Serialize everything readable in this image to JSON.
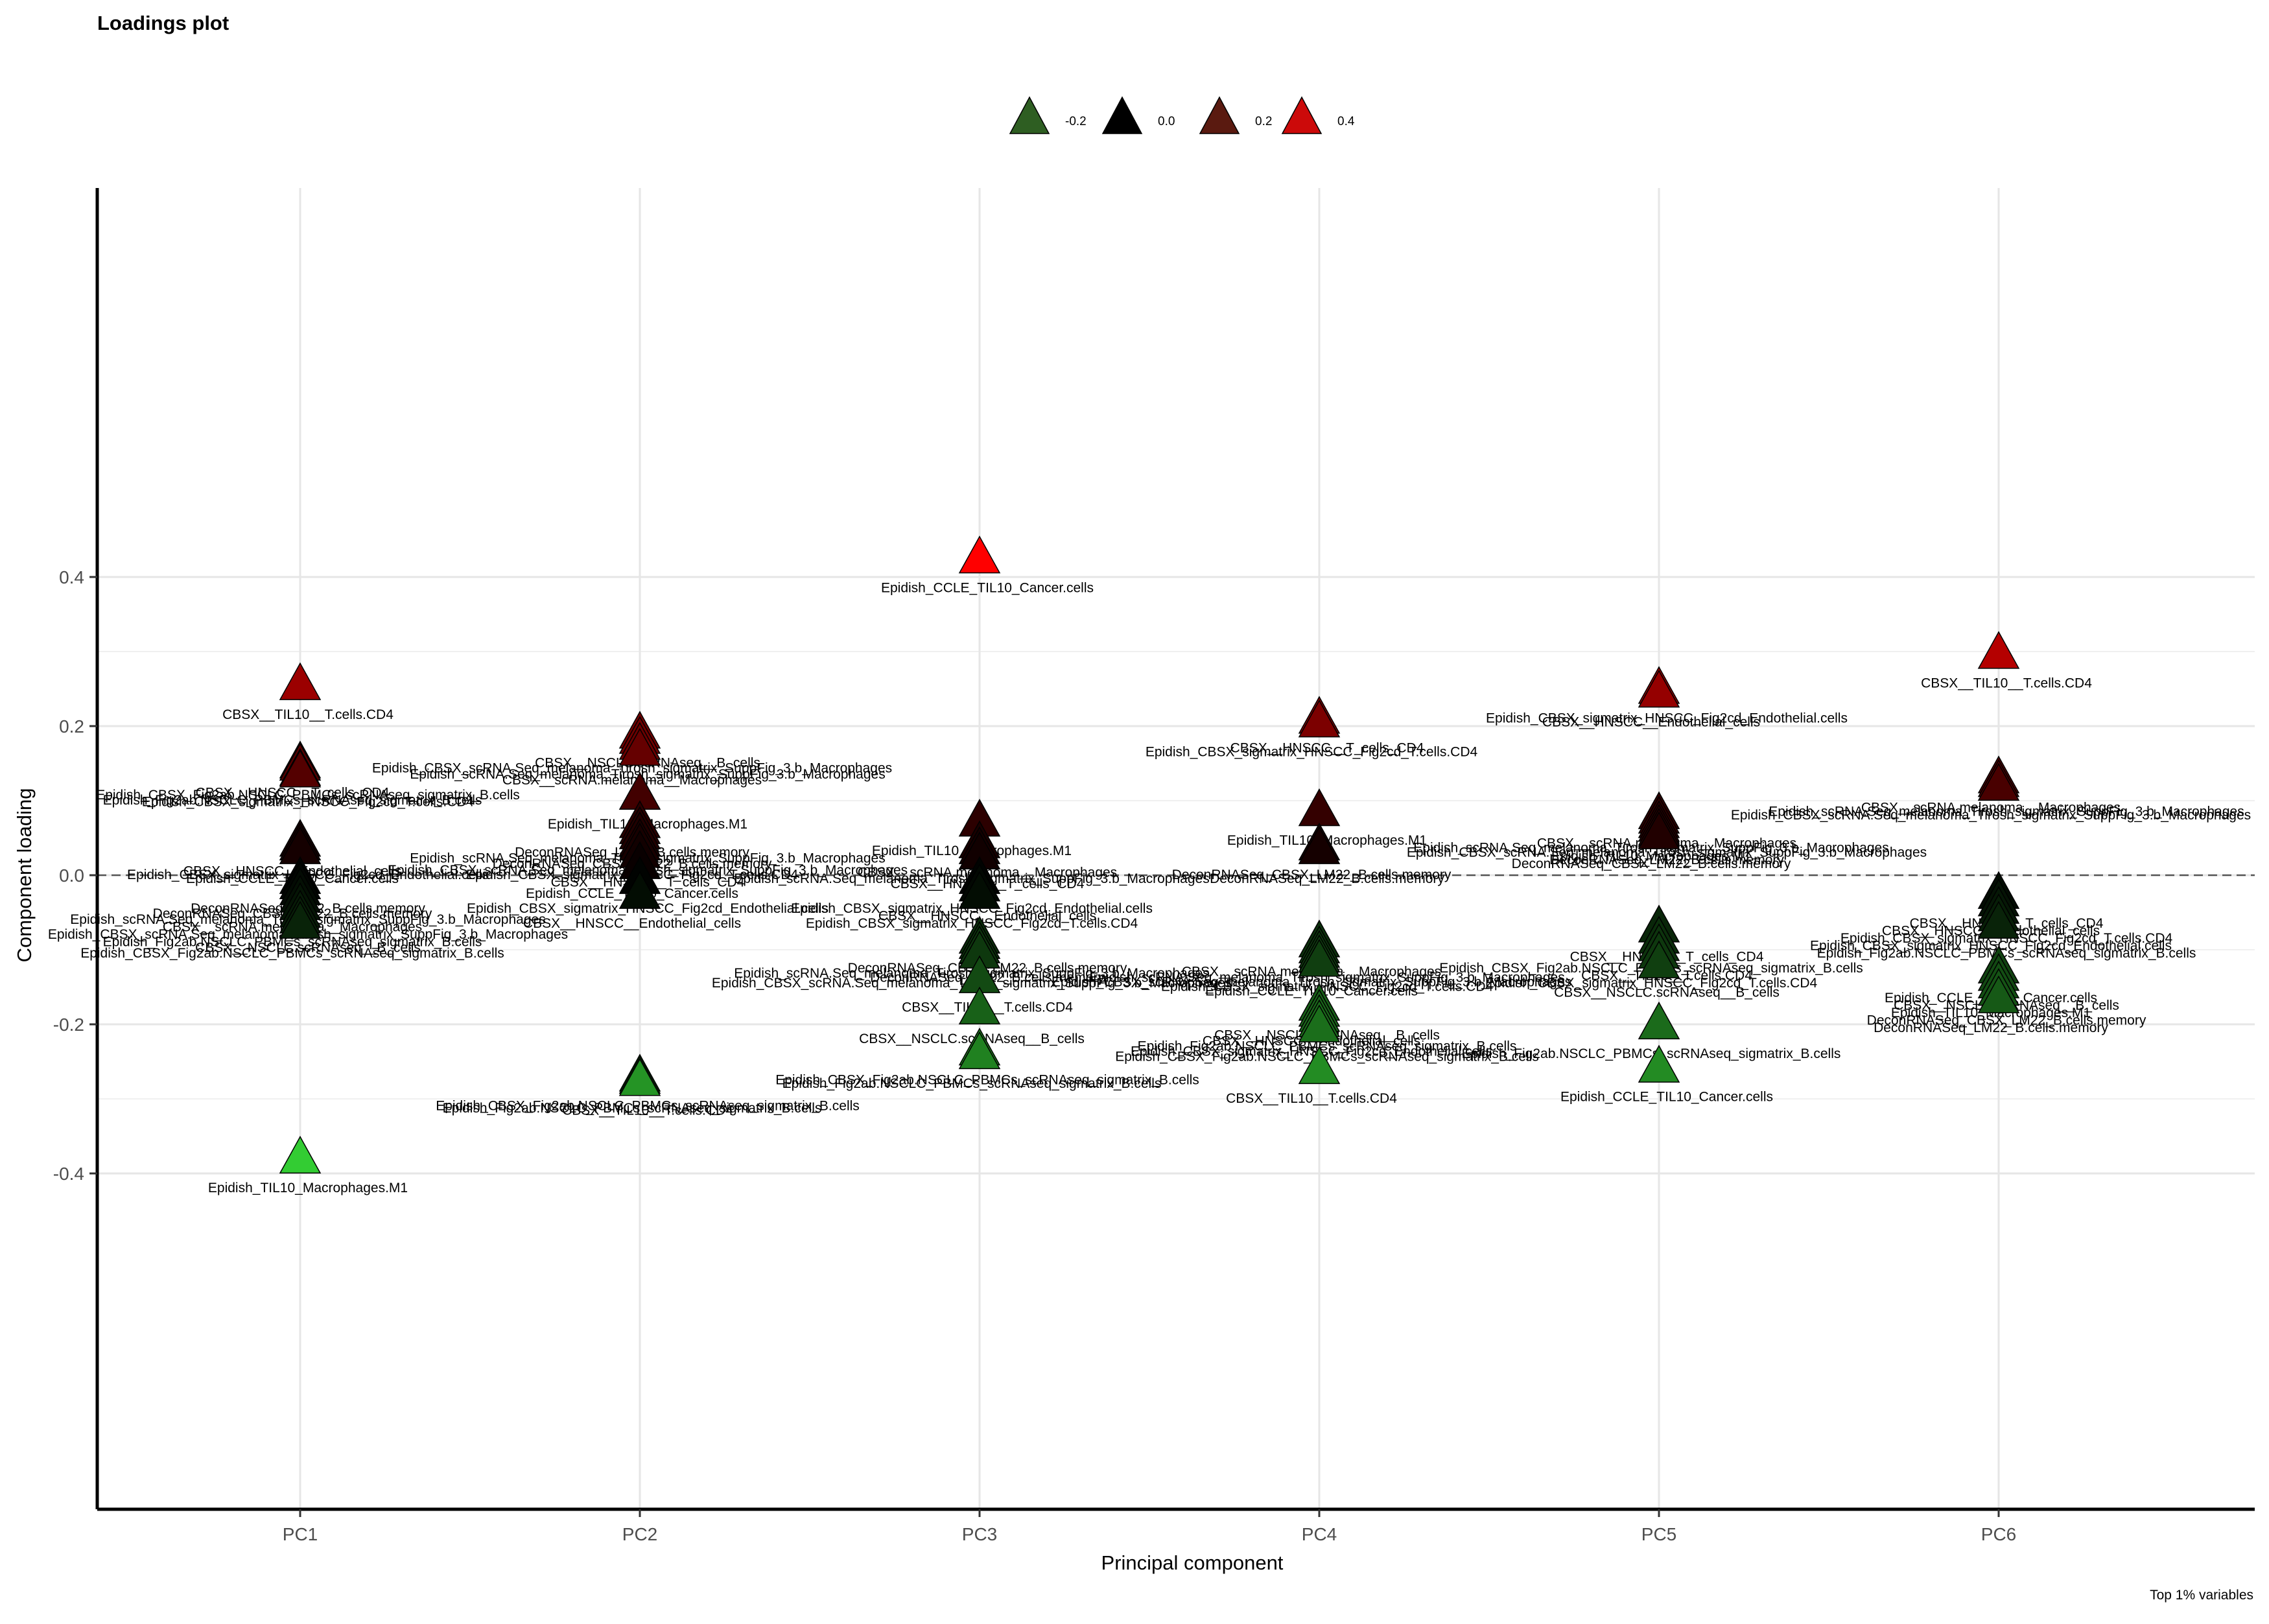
{
  "chart_data": {
    "type": "scatter",
    "title": "Loadings plot",
    "xlabel": "Principal component",
    "ylabel": "Component loading",
    "caption": "Top 1% variables",
    "categories": [
      "PC1",
      "PC2",
      "PC3",
      "PC4",
      "PC5",
      "PC6"
    ],
    "ylim": [
      -0.427,
      0.46
    ],
    "yticks": [
      -0.4,
      -0.2,
      0.0,
      0.2,
      0.4
    ],
    "ytick_labels": [
      "-0.4",
      "-0.2",
      "0.0",
      "0.2",
      "0.4"
    ],
    "hline": 0.0,
    "grid": true,
    "legend": {
      "position": "top",
      "entries": [
        {
          "label": "-0.2",
          "color": "#2e5e22"
        },
        {
          "label": "0.0",
          "color": "#000000"
        },
        {
          "label": "0.2",
          "color": "#5a1a10"
        },
        {
          "label": "0.4",
          "color": "#cc0a0a"
        }
      ]
    },
    "color_scale": {
      "low": "#33cc33",
      "mid": "#000000",
      "high": "#ff0000"
    },
    "points": [
      {
        "pc": "PC1",
        "y": 0.255,
        "label": "CBSX__TIL10__T.cells.CD4"
      },
      {
        "pc": "PC1",
        "y": 0.15,
        "label": "CBSX__HNSCC__T_cells_CD4"
      },
      {
        "pc": "PC1",
        "y": 0.147,
        "label": "Epidish_CBSX_Fig2ab.NSCLC_PBMCs_scRNAseq_sigmatrix_B.cells"
      },
      {
        "pc": "PC1",
        "y": 0.14,
        "label": "Epidish_Fig2ab.NSCLC_PBMCs_scRNAseq_sigmatrix_B.cells"
      },
      {
        "pc": "PC1",
        "y": 0.138,
        "label": "Epidish_CBSX_sigmatrix_HNSCC_Fig2cd_T.cells.CD4"
      },
      {
        "pc": "PC1",
        "y": 0.045,
        "label": "CBSX__HNSCC__Endothelial_cells"
      },
      {
        "pc": "PC1",
        "y": 0.04,
        "label": "Epidish_CBSX_sigmatrix_HNSCC_Fig2cd_Endothelial.cells"
      },
      {
        "pc": "PC1",
        "y": 0.035,
        "label": "Epidish_CCLE_TIL10_Cancer.cells"
      },
      {
        "pc": "PC1",
        "y": -0.005,
        "label": "DeconRNASeq_LM22_B.cells.memory"
      },
      {
        "pc": "PC1",
        "y": -0.012,
        "label": "DeconRNASeq_CBSX_LM22_B.cells.memory"
      },
      {
        "pc": "PC1",
        "y": -0.02,
        "label": "Epidish_scRNA.Seq_melanoma_Tirosh_sigmatrix_SuppFig_3.b_Macrophages"
      },
      {
        "pc": "PC1",
        "y": -0.03,
        "label": "CBSX__scRNA.melanoma__Macrophages"
      },
      {
        "pc": "PC1",
        "y": -0.04,
        "label": "Epidish_CBSX_scRNA.Seq_melanoma_Tirosh_sigmatrix_SuppFig_3.b_Macrophages"
      },
      {
        "pc": "PC1",
        "y": -0.05,
        "label": "Epidish_Fig2ab.NSCLC_PBMCs_scRNAseq_sigmatrix_B.cells"
      },
      {
        "pc": "PC1",
        "y": -0.058,
        "label": "CBSX__NSCLC.scRNAseq__B_cells"
      },
      {
        "pc": "PC1",
        "y": -0.065,
        "label": "Epidish_CBSX_Fig2ab.NSCLC_PBMCs_scRNAseq_sigmatrix_B.cells"
      },
      {
        "pc": "PC1",
        "y": -0.38,
        "label": "Epidish_TIL10_Macrophages.M1"
      },
      {
        "pc": "PC2",
        "y": 0.19,
        "label": "CBSX__NSCLC.scRNAseq__B_cells"
      },
      {
        "pc": "PC2",
        "y": 0.183,
        "label": "Epidish_CBSX_scRNA.Seq_melanoma_Tirosh_sigmatrix_SuppFig_3.b_Macrophages"
      },
      {
        "pc": "PC2",
        "y": 0.175,
        "label": "Epidish_scRNA.Seq_melanoma_Tirosh_sigmatrix_SuppFig_3.b_Macrophages"
      },
      {
        "pc": "PC2",
        "y": 0.167,
        "label": "CBSX__scRNA.melanoma__Macrophages"
      },
      {
        "pc": "PC2",
        "y": 0.108,
        "label": "Epidish_TIL10_Macrophages.M1"
      },
      {
        "pc": "PC2",
        "y": 0.07,
        "label": "DeconRNASeq_LM22_B.cells.memory"
      },
      {
        "pc": "PC2",
        "y": 0.062,
        "label": "Epidish_scRNA.Seq_melanoma_Tirosh_sigmatrix_SuppFig_3.b_Macrophages"
      },
      {
        "pc": "PC2",
        "y": 0.055,
        "label": "DeconRNASeq_CBSX_LM22_B.cells.memory"
      },
      {
        "pc": "PC2",
        "y": 0.046,
        "label": "Epidish_CBSX_scRNA.Seq_melanoma_Tirosh_sigmatrix_SuppFig_3.b_Macrophages"
      },
      {
        "pc": "PC2",
        "y": 0.04,
        "label": "Epidish_CBSX_sigmatrix_HNSCC_Fig2cd_T.cells.CD4"
      },
      {
        "pc": "PC2",
        "y": 0.03,
        "label": "CBSX__HNSCC__T_cells_CD4"
      },
      {
        "pc": "PC2",
        "y": 0.015,
        "label": "Epidish_CCLE_TIL10_Cancer.cells"
      },
      {
        "pc": "PC2",
        "y": -0.005,
        "label": "Epidish_CBSX_sigmatrix_HNSCC_Fig2cd_Endothelial.cells"
      },
      {
        "pc": "PC2",
        "y": -0.025,
        "label": "CBSX__HNSCC__Endothelial_cells"
      },
      {
        "pc": "PC2",
        "y": -0.27,
        "label": "Epidish_CBSX_Fig2ab.NSCLC_PBMCs_scRNAseq_sigmatrix_B.cells"
      },
      {
        "pc": "PC2",
        "y": -0.273,
        "label": "Epidish_Fig2ab.NSCLC_PBMCs_scRNAseq_sigmatrix_B.cells"
      },
      {
        "pc": "PC2",
        "y": -0.276,
        "label": "CBSX__TIL10__T.cells.CD4"
      },
      {
        "pc": "PC3",
        "y": 0.425,
        "label": "Epidish_CCLE_TIL10_Cancer.cells"
      },
      {
        "pc": "PC3",
        "y": 0.072,
        "label": "Epidish_TIL10_Macrophages.M1"
      },
      {
        "pc": "PC3",
        "y": 0.043,
        "label": "CBSX__scRNA.melanoma__Macrophages"
      },
      {
        "pc": "PC3",
        "y": 0.035,
        "label": "Epidish_scRNA.Seq_melanoma_Tirosh_sigmatrix_SuppFig_3.b_Macrophages"
      },
      {
        "pc": "PC3",
        "y": 0.028,
        "label": "CBSX__HNSCC__T_cells_CD4"
      },
      {
        "pc": "PC3",
        "y": -0.005,
        "label": "Epidish_CBSX_sigmatrix_HNSCC_Fig2cd_Endothelial.cells"
      },
      {
        "pc": "PC3",
        "y": -0.015,
        "label": "CBSX__HNSCC__Endothelial_cells"
      },
      {
        "pc": "PC3",
        "y": -0.025,
        "label": "Epidish_CBSX_sigmatrix_HNSCC_Fig2cd_T.cells.CD4"
      },
      {
        "pc": "PC3",
        "y": -0.085,
        "label": "DeconRNASeq_CBSX_LM22_B.cells.memory"
      },
      {
        "pc": "PC3",
        "y": -0.092,
        "label": "Epidish_scRNA.Seq_melanoma_Tirosh_sigmatrix_SuppFig_3.b_Macrophages"
      },
      {
        "pc": "PC3",
        "y": -0.098,
        "label": "DeconRNASeq_LM22_B.cells.memory"
      },
      {
        "pc": "PC3",
        "y": -0.105,
        "label": "Epidish_CBSX_scRNA.Seq_melanoma_Tirosh_sigmatrix_SuppFig_3.b_Macrophages"
      },
      {
        "pc": "PC3",
        "y": -0.138,
        "label": "CBSX__TIL10__T.cells.CD4"
      },
      {
        "pc": "PC3",
        "y": -0.18,
        "label": "CBSX__NSCLC.scRNAseq__B_cells"
      },
      {
        "pc": "PC3",
        "y": -0.235,
        "label": "Epidish_CBSX_Fig2ab.NSCLC_PBMCs_scRNAseq_sigmatrix_B.cells"
      },
      {
        "pc": "PC3",
        "y": -0.24,
        "label": "Epidish_Fig2ab.NSCLC_PBMCs_scRNAseq_sigmatrix_B.cells"
      },
      {
        "pc": "PC4",
        "y": 0.21,
        "label": "CBSX__HNSCC__T_cells_CD4"
      },
      {
        "pc": "PC4",
        "y": 0.205,
        "label": "Epidish_CBSX_sigmatrix_HNSCC_Fig2cd_T.cells.CD4"
      },
      {
        "pc": "PC4",
        "y": 0.086,
        "label": "Epidish_TIL10_Macrophages.M1"
      },
      {
        "pc": "PC4",
        "y": 0.04,
        "label": "DeconRNASeq_CBSX_LM22_B.cells.memory"
      },
      {
        "pc": "PC4",
        "y": 0.035,
        "label": "DeconRNASeq_LM22_B.cells.memory"
      },
      {
        "pc": "PC4",
        "y": -0.09,
        "label": "CBSX__scRNA.melanoma__Macrophages"
      },
      {
        "pc": "PC4",
        "y": -0.098,
        "label": "Epidish_scRNA.Seq_melanoma_Tirosh_sigmatrix_SuppFig_3.b_Macrophages"
      },
      {
        "pc": "PC4",
        "y": -0.104,
        "label": "Epidish_CBSX_scRNA.Seq_melanoma_Tirosh_sigmatrix_SuppFig_3.b_Macrophages"
      },
      {
        "pc": "PC4",
        "y": -0.11,
        "label": "Epidish_CBSX_sigmatrix_HNSCC_Fig2cd_T.cells.CD4"
      },
      {
        "pc": "PC4",
        "y": -0.116,
        "label": "Epidish_CCLE_TIL10_Cancer.cells"
      },
      {
        "pc": "PC4",
        "y": -0.175,
        "label": "CBSX__NSCLC.scRNAseq__B_cells"
      },
      {
        "pc": "PC4",
        "y": -0.183,
        "label": "CBSX__HNSCC__Endothelial_cells"
      },
      {
        "pc": "PC4",
        "y": -0.19,
        "label": "Epidish_Fig2ab.NSCLC_PBMCs_scRNAseq_sigmatrix_B.cells"
      },
      {
        "pc": "PC4",
        "y": -0.197,
        "label": "Epidish_CBSX_sigmatrix_HNSCC_Fig2cd_Endothelial.cells"
      },
      {
        "pc": "PC4",
        "y": -0.204,
        "label": "Epidish_CBSX_Fig2ab.NSCLC_PBMCs_scRNAseq_sigmatrix_B.cells"
      },
      {
        "pc": "PC4",
        "y": -0.26,
        "label": "CBSX__TIL10__T.cells.CD4"
      },
      {
        "pc": "PC5",
        "y": 0.25,
        "label": "Epidish_CBSX_sigmatrix_HNSCC_Fig2cd_Endothelial.cells"
      },
      {
        "pc": "PC5",
        "y": 0.245,
        "label": "CBSX__HNSCC__Endothelial_cells"
      },
      {
        "pc": "PC5",
        "y": 0.082,
        "label": "CBSX__scRNA.melanoma__Macrophages"
      },
      {
        "pc": "PC5",
        "y": 0.076,
        "label": "Epidish_scRNA.Seq_melanoma_Tirosh_sigmatrix_SuppFig_3.b_Macrophages"
      },
      {
        "pc": "PC5",
        "y": 0.07,
        "label": "Epidish_CBSX_scRNA.Seq_melanoma_Tirosh_sigmatrix_SuppFig_3.b_Macrophages"
      },
      {
        "pc": "PC5",
        "y": 0.065,
        "label": "Epidish_TIL10_Macrophages.M1"
      },
      {
        "pc": "PC5",
        "y": 0.06,
        "label": "DeconRNASeq_LM22_B.cells.memory"
      },
      {
        "pc": "PC5",
        "y": 0.055,
        "label": "DeconRNASeq_CBSX_LM22_B.cells.memory"
      },
      {
        "pc": "PC5",
        "y": -0.07,
        "label": "CBSX__HNSCC__T_cells_CD4"
      },
      {
        "pc": "PC5",
        "y": -0.085,
        "label": "Epidish_CBSX_Fig2ab.NSCLC_PBMCs_scRNAseq_sigmatrix_B.cells"
      },
      {
        "pc": "PC5",
        "y": -0.095,
        "label": "CBSX__TIL10__T.cells.CD4"
      },
      {
        "pc": "PC5",
        "y": -0.105,
        "label": "Epidish_CBSX_sigmatrix_HNSCC_Fig2cd_T.cells.CD4"
      },
      {
        "pc": "PC5",
        "y": -0.118,
        "label": "CBSX__NSCLC.scRNAseq__B_cells"
      },
      {
        "pc": "PC5",
        "y": -0.2,
        "label": "Epidish_Fig2ab.NSCLC_PBMCs_scRNAseq_sigmatrix_B.cells"
      },
      {
        "pc": "PC5",
        "y": -0.258,
        "label": "Epidish_CCLE_TIL10_Cancer.cells"
      },
      {
        "pc": "PC6",
        "y": 0.297,
        "label": "CBSX__TIL10__T.cells.CD4"
      },
      {
        "pc": "PC6",
        "y": 0.13,
        "label": "CBSX__scRNA.melanoma__Macrophages"
      },
      {
        "pc": "PC6",
        "y": 0.125,
        "label": "Epidish_scRNA.Seq_melanoma_Tirosh_sigmatrix_SuppFig_3.b_Macrophages"
      },
      {
        "pc": "PC6",
        "y": 0.12,
        "label": "Epidish_CBSX_scRNA.Seq_melanoma_Tirosh_sigmatrix_SuppFig_3.b_Macrophages"
      },
      {
        "pc": "PC6",
        "y": -0.025,
        "label": "CBSX__HNSCC__T_cells_CD4"
      },
      {
        "pc": "PC6",
        "y": -0.035,
        "label": "CBSX__HNSCC__Endothelial_cells"
      },
      {
        "pc": "PC6",
        "y": -0.045,
        "label": "Epidish_CBSX_sigmatrix_HNSCC_Fig2cd_T.cells.CD4"
      },
      {
        "pc": "PC6",
        "y": -0.055,
        "label": "Epidish_CBSX_sigmatrix_HNSCC_Fig2cd_Endothelial.cells"
      },
      {
        "pc": "PC6",
        "y": -0.065,
        "label": "Epidish_Fig2ab.NSCLC_PBMCs_scRNAseq_sigmatrix_B.cells"
      },
      {
        "pc": "PC6",
        "y": -0.125,
        "label": "Epidish_CCLE_TIL10_Cancer.cells"
      },
      {
        "pc": "PC6",
        "y": -0.135,
        "label": "CBSX__NSCLC.scRNAseq__B_cells"
      },
      {
        "pc": "PC6",
        "y": -0.145,
        "label": "Epidish_TIL10_Macrophages.M1"
      },
      {
        "pc": "PC6",
        "y": -0.155,
        "label": "DeconRNASeq_CBSX_LM22_B.cells.memory"
      },
      {
        "pc": "PC6",
        "y": -0.165,
        "label": "DeconRNASeq_LM22_B.cells.memory"
      }
    ]
  }
}
